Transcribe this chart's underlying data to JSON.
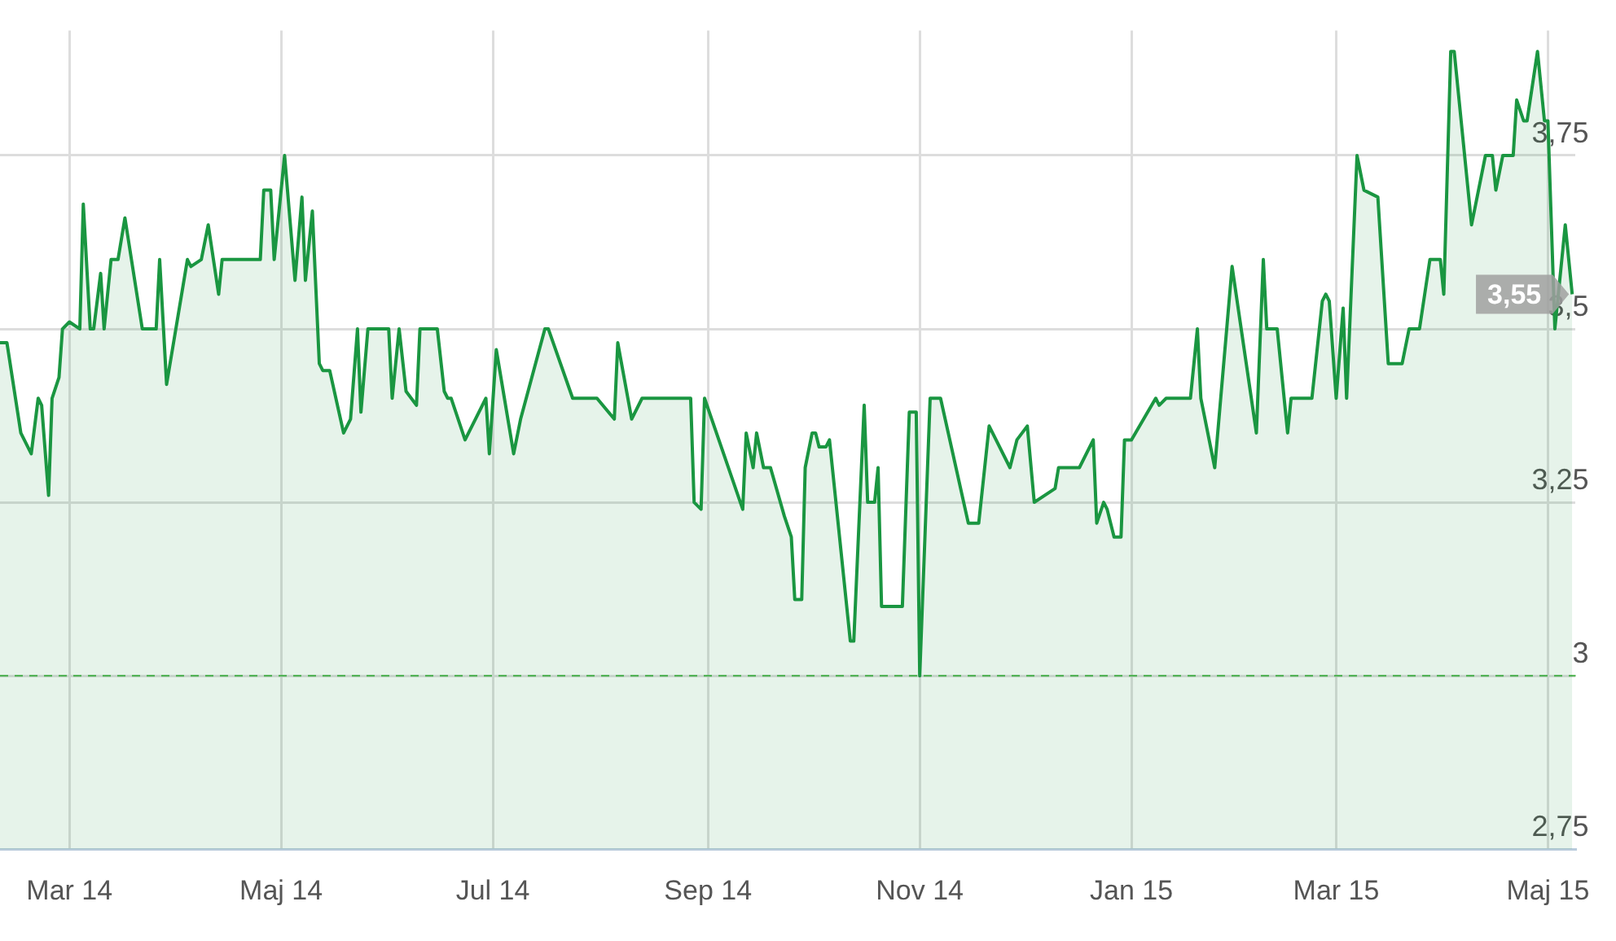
{
  "chart_data": {
    "type": "area",
    "x": [
      "2014-02-09",
      "2014-02-11",
      "2014-02-15",
      "2014-02-18",
      "2014-02-20",
      "2014-02-21",
      "2014-02-23",
      "2014-02-24",
      "2014-02-26",
      "2014-02-27",
      "2014-03-01",
      "2014-03-04",
      "2014-03-05",
      "2014-03-07",
      "2014-03-08",
      "2014-03-10",
      "2014-03-11",
      "2014-03-13",
      "2014-03-15",
      "2014-03-17",
      "2014-03-22",
      "2014-03-26",
      "2014-03-27",
      "2014-03-29",
      "2014-04-04",
      "2014-04-05",
      "2014-04-08",
      "2014-04-10",
      "2014-04-13",
      "2014-04-14",
      "2014-04-25",
      "2014-04-26",
      "2014-04-28",
      "2014-04-29",
      "2014-05-02",
      "2014-05-05",
      "2014-05-07",
      "2014-05-08",
      "2014-05-10",
      "2014-05-12",
      "2014-05-13",
      "2014-05-15",
      "2014-05-19",
      "2014-05-21",
      "2014-05-23",
      "2014-05-24",
      "2014-05-26",
      "2014-06-01",
      "2014-06-02",
      "2014-06-04",
      "2014-06-06",
      "2014-06-09",
      "2014-06-10",
      "2014-06-15",
      "2014-06-17",
      "2014-06-18",
      "2014-06-19",
      "2014-06-23",
      "2014-06-29",
      "2014-06-30",
      "2014-07-02",
      "2014-07-07",
      "2014-07-09",
      "2014-07-16",
      "2014-07-17",
      "2014-07-24",
      "2014-07-31",
      "2014-08-05",
      "2014-08-06",
      "2014-08-10",
      "2014-08-13",
      "2014-08-27",
      "2014-08-28",
      "2014-08-30",
      "2014-08-31",
      "2014-09-11",
      "2014-09-12",
      "2014-09-14",
      "2014-09-15",
      "2014-09-17",
      "2014-09-19",
      "2014-09-23",
      "2014-09-25",
      "2014-09-26",
      "2014-09-28",
      "2014-09-29",
      "2014-10-01",
      "2014-10-02",
      "2014-10-03",
      "2014-10-05",
      "2014-10-06",
      "2014-10-12",
      "2014-10-13",
      "2014-10-16",
      "2014-10-17",
      "2014-10-19",
      "2014-10-20",
      "2014-10-21",
      "2014-10-27",
      "2014-10-29",
      "2014-10-31",
      "2014-11-01",
      "2014-11-04",
      "2014-11-07",
      "2014-11-15",
      "2014-11-18",
      "2014-11-21",
      "2014-11-27",
      "2014-11-29",
      "2014-12-02",
      "2014-12-04",
      "2014-12-10",
      "2014-12-11",
      "2014-12-17",
      "2014-12-21",
      "2014-12-22",
      "2014-12-24",
      "2014-12-25",
      "2014-12-27",
      "2014-12-29",
      "2014-12-30",
      "2015-01-01",
      "2015-01-08",
      "2015-01-09",
      "2015-01-11",
      "2015-01-16",
      "2015-01-18",
      "2015-01-20",
      "2015-01-21",
      "2015-01-25",
      "2015-01-30",
      "2015-02-06",
      "2015-02-08",
      "2015-02-09",
      "2015-02-12",
      "2015-02-15",
      "2015-02-16",
      "2015-02-22",
      "2015-02-25",
      "2015-02-26",
      "2015-02-27",
      "2015-03-01",
      "2015-03-03",
      "2015-03-04",
      "2015-03-07",
      "2015-03-09",
      "2015-03-13",
      "2015-03-16",
      "2015-03-20",
      "2015-03-22",
      "2015-03-25",
      "2015-03-28",
      "2015-03-31",
      "2015-04-01",
      "2015-04-03",
      "2015-04-04",
      "2015-04-09",
      "2015-04-13",
      "2015-04-15",
      "2015-04-16",
      "2015-04-18",
      "2015-04-21",
      "2015-04-22",
      "2015-04-24",
      "2015-04-25",
      "2015-04-28",
      "2015-04-30",
      "2015-05-01",
      "2015-05-03",
      "2015-05-06",
      "2015-05-08"
    ],
    "series": [
      {
        "color": "#1a9641",
        "values": [
          3.48,
          3.48,
          3.35,
          3.32,
          3.4,
          3.39,
          3.26,
          3.4,
          3.43,
          3.5,
          3.51,
          3.5,
          3.68,
          3.5,
          3.5,
          3.58,
          3.5,
          3.6,
          3.6,
          3.66,
          3.5,
          3.5,
          3.6,
          3.42,
          3.6,
          3.59,
          3.6,
          3.65,
          3.55,
          3.6,
          3.6,
          3.7,
          3.7,
          3.6,
          3.75,
          3.57,
          3.69,
          3.57,
          3.67,
          3.45,
          3.44,
          3.44,
          3.35,
          3.37,
          3.5,
          3.38,
          3.5,
          3.5,
          3.4,
          3.5,
          3.41,
          3.39,
          3.5,
          3.5,
          3.41,
          3.4,
          3.4,
          3.34,
          3.4,
          3.32,
          3.47,
          3.32,
          3.37,
          3.5,
          3.5,
          3.4,
          3.4,
          3.37,
          3.48,
          3.37,
          3.4,
          3.4,
          3.25,
          3.24,
          3.4,
          3.24,
          3.35,
          3.3,
          3.35,
          3.3,
          3.3,
          3.23,
          3.2,
          3.11,
          3.11,
          3.3,
          3.35,
          3.35,
          3.33,
          3.33,
          3.34,
          3.05,
          3.05,
          3.39,
          3.25,
          3.25,
          3.3,
          3.1,
          3.1,
          3.38,
          3.38,
          3.0,
          3.4,
          3.4,
          3.22,
          3.22,
          3.36,
          3.3,
          3.34,
          3.36,
          3.25,
          3.27,
          3.3,
          3.3,
          3.34,
          3.22,
          3.25,
          3.24,
          3.2,
          3.2,
          3.34,
          3.34,
          3.4,
          3.39,
          3.4,
          3.4,
          3.4,
          3.5,
          3.4,
          3.3,
          3.59,
          3.35,
          3.6,
          3.5,
          3.5,
          3.35,
          3.4,
          3.4,
          3.54,
          3.55,
          3.54,
          3.4,
          3.53,
          3.4,
          3.75,
          3.7,
          3.69,
          3.45,
          3.45,
          3.5,
          3.5,
          3.6,
          3.6,
          3.55,
          3.9,
          3.9,
          3.65,
          3.75,
          3.75,
          3.7,
          3.75,
          3.75,
          3.83,
          3.8,
          3.8,
          3.9,
          3.8,
          3.8,
          3.5,
          3.65,
          3.55
        ]
      }
    ],
    "xlim": [
      "2014-02-09",
      "2015-05-09"
    ],
    "xticks": [
      {
        "value": "2014-03-01",
        "label": "Mar 14"
      },
      {
        "value": "2014-05-01",
        "label": "Maj 14"
      },
      {
        "value": "2014-07-01",
        "label": "Jul 14"
      },
      {
        "value": "2014-09-01",
        "label": "Sep 14"
      },
      {
        "value": "2014-11-01",
        "label": "Nov 14"
      },
      {
        "value": "2015-01-01",
        "label": "Jan 15"
      },
      {
        "value": "2015-03-01",
        "label": "Mar 15"
      },
      {
        "value": "2015-05-01",
        "label": "Maj 15"
      }
    ],
    "ylim": [
      2.75,
      3.93
    ],
    "yticks": [
      {
        "value": 2.75,
        "label": "2,75"
      },
      3,
      {
        "value": 3.25,
        "label": "3,25"
      },
      {
        "value": 3.5,
        "label": "3,5"
      },
      {
        "value": 3.75,
        "label": "3,75"
      }
    ],
    "ref_lines": [
      {
        "axis": "y",
        "value": 3,
        "color": "#5cb85c",
        "line_style": "dashed"
      }
    ],
    "annotations": [
      {
        "text": "3,55",
        "x": "2015-05-08",
        "y": 3.55
      }
    ],
    "grid": true,
    "marker": "none",
    "line_style": "solid"
  }
}
